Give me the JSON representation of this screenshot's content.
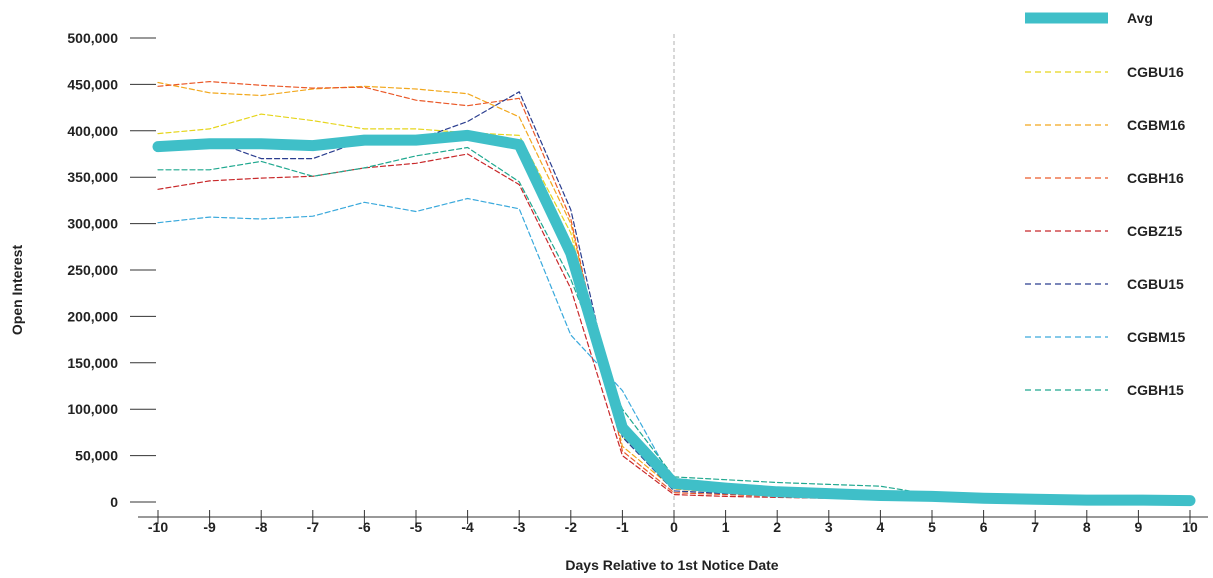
{
  "chart_data": {
    "type": "line",
    "xlabel": "Days Relative to 1st Notice Date",
    "ylabel": "Open Interest",
    "xlim": [
      -10,
      10
    ],
    "ylim": [
      0,
      500000
    ],
    "x": [
      -10,
      -9,
      -8,
      -7,
      -6,
      -5,
      -4,
      -3,
      -2,
      -1,
      0,
      1,
      2,
      3,
      4,
      5,
      6,
      7,
      8,
      9,
      10
    ],
    "x_tick_labels": [
      "-10",
      "-9",
      "-8",
      "-7",
      "-6",
      "-5",
      "-4",
      "-3",
      "-2",
      "-1",
      "0",
      "1",
      "2",
      "3",
      "4",
      "5",
      "6",
      "7",
      "8",
      "9",
      "10"
    ],
    "y_tick_labels": [
      "0",
      "50,000",
      "100,000",
      "150,000",
      "200,000",
      "250,000",
      "300,000",
      "350,000",
      "400,000",
      "450,000",
      "500,000"
    ],
    "y_ticks": [
      0,
      50000,
      100000,
      150000,
      200000,
      250000,
      300000,
      350000,
      400000,
      450000,
      500000
    ],
    "reference_line_x": 0,
    "legend_position": "right",
    "series": [
      {
        "name": "Avg",
        "color": "#3fbfc8",
        "style": "solid",
        "values": [
          383000,
          386000,
          386000,
          384000,
          390000,
          390000,
          395000,
          385000,
          268000,
          80000,
          20000,
          15000,
          11000,
          9000,
          7000,
          6000,
          4000,
          3000,
          2000,
          2000,
          1500
        ]
      },
      {
        "name": "CGBU16",
        "color": "#e6d51c",
        "style": "dashed",
        "values": [
          397000,
          402000,
          418000,
          411000,
          402000,
          402000,
          398000,
          395000,
          290000,
          70000,
          22000,
          18000,
          14000,
          12000,
          10000,
          7000,
          5000,
          4000,
          3000,
          2500,
          2000
        ]
      },
      {
        "name": "CGBM16",
        "color": "#f2a81d",
        "style": "dashed",
        "values": [
          452000,
          441000,
          438000,
          445000,
          448000,
          445000,
          440000,
          415000,
          300000,
          60000,
          14000,
          10000,
          8000,
          7000,
          6000,
          5000,
          4000,
          3000,
          2500,
          2000,
          1500
        ]
      },
      {
        "name": "CGBH16",
        "color": "#ea5a2a",
        "style": "dashed",
        "values": [
          448000,
          453000,
          449000,
          446000,
          447000,
          433000,
          427000,
          435000,
          305000,
          55000,
          10000,
          8000,
          6000,
          5000,
          4000,
          4000,
          3000,
          2500,
          2000,
          1500,
          1000
        ]
      },
      {
        "name": "CGBZ15",
        "color": "#c8282a",
        "style": "dashed",
        "values": [
          337000,
          346000,
          349000,
          351000,
          360000,
          365000,
          375000,
          342000,
          230000,
          50000,
          8000,
          6000,
          5000,
          4000,
          4000,
          3000,
          3000,
          2000,
          2000,
          1500,
          1000
        ]
      },
      {
        "name": "CGBU15",
        "color": "#2a3d8f",
        "style": "dashed",
        "values": [
          385000,
          390000,
          370000,
          370000,
          390000,
          390000,
          410000,
          442000,
          315000,
          70000,
          12000,
          9000,
          7000,
          6000,
          5000,
          4000,
          3000,
          2500,
          2000,
          1500,
          1000
        ]
      },
      {
        "name": "CGBM15",
        "color": "#3aa9dc",
        "style": "dashed",
        "values": [
          301000,
          307000,
          305000,
          308000,
          323000,
          313000,
          327000,
          316000,
          180000,
          120000,
          20000,
          17000,
          15000,
          13000,
          11000,
          8000,
          6000,
          5000,
          4000,
          3000,
          2000
        ]
      },
      {
        "name": "CGBH15",
        "color": "#1fa88f",
        "style": "dashed",
        "values": [
          358000,
          358000,
          367000,
          351000,
          360000,
          373000,
          382000,
          345000,
          240000,
          100000,
          27000,
          24000,
          21000,
          19000,
          17000,
          8000,
          6000,
          5000,
          4000,
          3000,
          2000
        ]
      }
    ]
  }
}
